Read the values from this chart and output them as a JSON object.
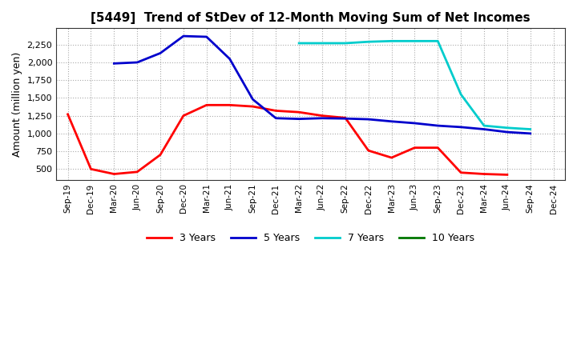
{
  "title": "[5449]  Trend of StDev of 12-Month Moving Sum of Net Incomes",
  "ylabel": "Amount (million yen)",
  "background_color": "#ffffff",
  "grid_color": "#aaaaaa",
  "x_labels": [
    "Sep-19",
    "Dec-19",
    "Mar-20",
    "Jun-20",
    "Sep-20",
    "Dec-20",
    "Mar-21",
    "Jun-21",
    "Sep-21",
    "Dec-21",
    "Mar-22",
    "Jun-22",
    "Sep-22",
    "Dec-22",
    "Mar-23",
    "Jun-23",
    "Sep-23",
    "Dec-23",
    "Mar-24",
    "Jun-24",
    "Sep-24",
    "Dec-24"
  ],
  "series_3y": {
    "color": "#ff0000",
    "points": [
      [
        "Sep-19",
        1270
      ],
      [
        "Dec-19",
        500
      ],
      [
        "Mar-20",
        430
      ],
      [
        "Jun-20",
        460
      ],
      [
        "Sep-20",
        700
      ],
      [
        "Dec-20",
        1250
      ],
      [
        "Mar-21",
        1400
      ],
      [
        "Jun-21",
        1400
      ],
      [
        "Sep-21",
        1380
      ],
      [
        "Dec-21",
        1320
      ],
      [
        "Mar-22",
        1300
      ],
      [
        "Jun-22",
        1250
      ],
      [
        "Sep-22",
        1220
      ],
      [
        "Dec-22",
        760
      ],
      [
        "Mar-23",
        660
      ],
      [
        "Jun-23",
        800
      ],
      [
        "Sep-23",
        800
      ],
      [
        "Dec-23",
        450
      ],
      [
        "Mar-24",
        430
      ],
      [
        "Jun-24",
        420
      ]
    ]
  },
  "series_5y": {
    "color": "#0000cc",
    "points": [
      [
        "Mar-20",
        1985
      ],
      [
        "Jun-20",
        2000
      ],
      [
        "Sep-20",
        2130
      ],
      [
        "Dec-20",
        2370
      ],
      [
        "Mar-21",
        2360
      ],
      [
        "Jun-21",
        2050
      ],
      [
        "Sep-21",
        1480
      ],
      [
        "Dec-21",
        1215
      ],
      [
        "Mar-22",
        1205
      ],
      [
        "Jun-22",
        1215
      ],
      [
        "Sep-22",
        1210
      ],
      [
        "Dec-22",
        1200
      ],
      [
        "Mar-23",
        1170
      ],
      [
        "Jun-23",
        1145
      ],
      [
        "Sep-23",
        1110
      ],
      [
        "Dec-23",
        1090
      ],
      [
        "Mar-24",
        1060
      ],
      [
        "Jun-24",
        1020
      ],
      [
        "Sep-24",
        1000
      ]
    ]
  },
  "series_7y": {
    "color": "#00cccc",
    "points": [
      [
        "Mar-22",
        2270
      ],
      [
        "Jun-22",
        2270
      ],
      [
        "Sep-22",
        2270
      ],
      [
        "Dec-22",
        2290
      ],
      [
        "Mar-23",
        2300
      ],
      [
        "Jun-23",
        2300
      ],
      [
        "Sep-23",
        2300
      ],
      [
        "Dec-23",
        1550
      ],
      [
        "Mar-24",
        1110
      ],
      [
        "Jun-24",
        1080
      ],
      [
        "Sep-24",
        1060
      ]
    ]
  },
  "series_10y": {
    "color": "#007700",
    "points": []
  },
  "ylim": [
    350,
    2480
  ],
  "yticks": [
    500,
    750,
    1000,
    1250,
    1500,
    1750,
    2000,
    2250
  ],
  "legend_labels": [
    "3 Years",
    "5 Years",
    "7 Years",
    "10 Years"
  ],
  "legend_colors": [
    "#ff0000",
    "#0000cc",
    "#00cccc",
    "#007700"
  ]
}
